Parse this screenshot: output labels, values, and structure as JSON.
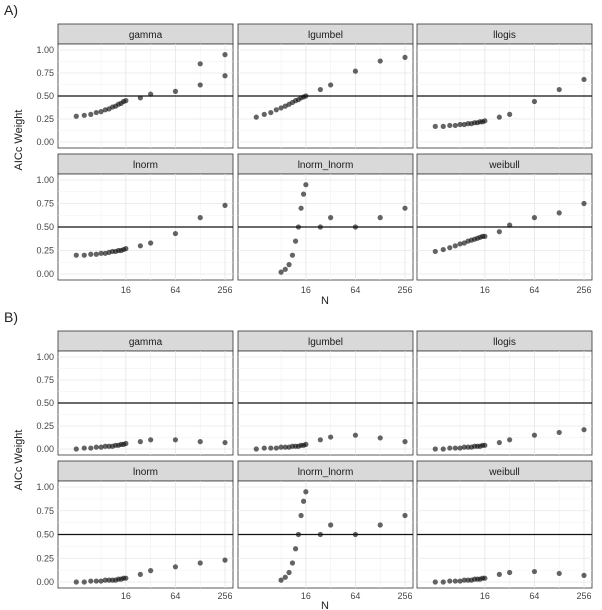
{
  "figure": {
    "axis_label_y": "AICc Weight",
    "axis_label_x": "N"
  },
  "chart_data": [
    {
      "type": "scatter",
      "panel_label": "A)",
      "ylabel": "AICc Weight",
      "xlabel": "N",
      "x_scale": "log2",
      "x_range": [
        3,
        256
      ],
      "y_range": [
        0,
        1
      ],
      "x_ticks": [
        "16",
        "64",
        "256"
      ],
      "y_ticks": [
        "0.00",
        "0.25",
        "0.50",
        "0.75",
        "1.00"
      ],
      "reference_line_y": 0.5,
      "grid": true,
      "facets": [
        {
          "name": "gamma",
          "points": [
            [
              4,
              0.28
            ],
            [
              5,
              0.29
            ],
            [
              6,
              0.3
            ],
            [
              7,
              0.32
            ],
            [
              8,
              0.33
            ],
            [
              9,
              0.35
            ],
            [
              10,
              0.36
            ],
            [
              11,
              0.38
            ],
            [
              12,
              0.39
            ],
            [
              13,
              0.41
            ],
            [
              14,
              0.42
            ],
            [
              15,
              0.44
            ],
            [
              16,
              0.45
            ],
            [
              24,
              0.48
            ],
            [
              32,
              0.52
            ],
            [
              64,
              0.55
            ],
            [
              128,
              0.62
            ],
            [
              256,
              0.72
            ],
            [
              256,
              0.95
            ],
            [
              128,
              0.85
            ]
          ]
        },
        {
          "name": "lgumbel",
          "points": [
            [
              4,
              0.27
            ],
            [
              5,
              0.3
            ],
            [
              6,
              0.32
            ],
            [
              7,
              0.35
            ],
            [
              8,
              0.37
            ],
            [
              9,
              0.39
            ],
            [
              10,
              0.41
            ],
            [
              11,
              0.43
            ],
            [
              12,
              0.45
            ],
            [
              13,
              0.46
            ],
            [
              14,
              0.48
            ],
            [
              15,
              0.49
            ],
            [
              16,
              0.5
            ],
            [
              24,
              0.57
            ],
            [
              32,
              0.62
            ],
            [
              64,
              0.77
            ],
            [
              128,
              0.88
            ],
            [
              256,
              0.92
            ]
          ]
        },
        {
          "name": "llogis",
          "points": [
            [
              4,
              0.17
            ],
            [
              5,
              0.17
            ],
            [
              6,
              0.18
            ],
            [
              7,
              0.18
            ],
            [
              8,
              0.19
            ],
            [
              9,
              0.19
            ],
            [
              10,
              0.2
            ],
            [
              11,
              0.2
            ],
            [
              12,
              0.21
            ],
            [
              13,
              0.21
            ],
            [
              14,
              0.22
            ],
            [
              15,
              0.22
            ],
            [
              16,
              0.23
            ],
            [
              24,
              0.27
            ],
            [
              32,
              0.3
            ],
            [
              64,
              0.44
            ],
            [
              128,
              0.57
            ],
            [
              256,
              0.68
            ]
          ]
        },
        {
          "name": "lnorm",
          "points": [
            [
              4,
              0.2
            ],
            [
              5,
              0.2
            ],
            [
              6,
              0.21
            ],
            [
              7,
              0.21
            ],
            [
              8,
              0.22
            ],
            [
              9,
              0.22
            ],
            [
              10,
              0.23
            ],
            [
              11,
              0.24
            ],
            [
              12,
              0.24
            ],
            [
              13,
              0.25
            ],
            [
              14,
              0.25
            ],
            [
              15,
              0.26
            ],
            [
              16,
              0.27
            ],
            [
              24,
              0.3
            ],
            [
              32,
              0.33
            ],
            [
              64,
              0.43
            ],
            [
              128,
              0.6
            ],
            [
              256,
              0.73
            ]
          ]
        },
        {
          "name": "lnorm_lnorm",
          "points": [
            [
              8,
              0.02
            ],
            [
              9,
              0.05
            ],
            [
              10,
              0.1
            ],
            [
              11,
              0.2
            ],
            [
              12,
              0.35
            ],
            [
              13,
              0.5
            ],
            [
              14,
              0.7
            ],
            [
              15,
              0.85
            ],
            [
              16,
              0.95
            ],
            [
              24,
              0.5
            ],
            [
              32,
              0.6
            ],
            [
              64,
              0.5
            ],
            [
              128,
              0.6
            ],
            [
              256,
              0.7
            ]
          ]
        },
        {
          "name": "weibull",
          "points": [
            [
              4,
              0.24
            ],
            [
              5,
              0.26
            ],
            [
              6,
              0.28
            ],
            [
              7,
              0.3
            ],
            [
              8,
              0.32
            ],
            [
              9,
              0.33
            ],
            [
              10,
              0.35
            ],
            [
              11,
              0.36
            ],
            [
              12,
              0.37
            ],
            [
              13,
              0.38
            ],
            [
              14,
              0.39
            ],
            [
              15,
              0.4
            ],
            [
              16,
              0.4
            ],
            [
              24,
              0.45
            ],
            [
              32,
              0.52
            ],
            [
              64,
              0.6
            ],
            [
              128,
              0.65
            ],
            [
              256,
              0.75
            ]
          ]
        }
      ]
    },
    {
      "type": "scatter",
      "panel_label": "B)",
      "ylabel": "AICc Weight",
      "xlabel": "N",
      "x_scale": "log2",
      "x_range": [
        3,
        256
      ],
      "y_range": [
        0,
        1
      ],
      "x_ticks": [
        "16",
        "64",
        "256"
      ],
      "y_ticks": [
        "0.00",
        "0.25",
        "0.50",
        "0.75",
        "1.00"
      ],
      "reference_line_y": 0.5,
      "grid": true,
      "facets": [
        {
          "name": "gamma",
          "points": [
            [
              4,
              0.0
            ],
            [
              5,
              0.01
            ],
            [
              6,
              0.01
            ],
            [
              7,
              0.02
            ],
            [
              8,
              0.02
            ],
            [
              9,
              0.03
            ],
            [
              10,
              0.03
            ],
            [
              11,
              0.03
            ],
            [
              12,
              0.04
            ],
            [
              13,
              0.04
            ],
            [
              14,
              0.05
            ],
            [
              15,
              0.05
            ],
            [
              16,
              0.06
            ],
            [
              24,
              0.08
            ],
            [
              32,
              0.1
            ],
            [
              64,
              0.1
            ],
            [
              128,
              0.08
            ],
            [
              256,
              0.07
            ]
          ]
        },
        {
          "name": "lgumbel",
          "points": [
            [
              4,
              0.0
            ],
            [
              5,
              0.01
            ],
            [
              6,
              0.01
            ],
            [
              7,
              0.01
            ],
            [
              8,
              0.02
            ],
            [
              9,
              0.02
            ],
            [
              10,
              0.02
            ],
            [
              11,
              0.03
            ],
            [
              12,
              0.03
            ],
            [
              13,
              0.03
            ],
            [
              14,
              0.04
            ],
            [
              15,
              0.04
            ],
            [
              16,
              0.05
            ],
            [
              24,
              0.1
            ],
            [
              32,
              0.13
            ],
            [
              64,
              0.15
            ],
            [
              128,
              0.12
            ],
            [
              256,
              0.08
            ]
          ]
        },
        {
          "name": "llogis",
          "points": [
            [
              4,
              0.0
            ],
            [
              5,
              0.0
            ],
            [
              6,
              0.01
            ],
            [
              7,
              0.01
            ],
            [
              8,
              0.01
            ],
            [
              9,
              0.02
            ],
            [
              10,
              0.02
            ],
            [
              11,
              0.02
            ],
            [
              12,
              0.03
            ],
            [
              13,
              0.03
            ],
            [
              14,
              0.03
            ],
            [
              15,
              0.04
            ],
            [
              16,
              0.04
            ],
            [
              24,
              0.07
            ],
            [
              32,
              0.1
            ],
            [
              64,
              0.15
            ],
            [
              128,
              0.18
            ],
            [
              256,
              0.21
            ]
          ]
        },
        {
          "name": "lnorm",
          "points": [
            [
              4,
              0.0
            ],
            [
              5,
              0.0
            ],
            [
              6,
              0.01
            ],
            [
              7,
              0.01
            ],
            [
              8,
              0.01
            ],
            [
              9,
              0.02
            ],
            [
              10,
              0.02
            ],
            [
              11,
              0.02
            ],
            [
              12,
              0.02
            ],
            [
              13,
              0.03
            ],
            [
              14,
              0.03
            ],
            [
              15,
              0.04
            ],
            [
              16,
              0.04
            ],
            [
              24,
              0.08
            ],
            [
              32,
              0.12
            ],
            [
              64,
              0.16
            ],
            [
              128,
              0.2
            ],
            [
              256,
              0.23
            ]
          ]
        },
        {
          "name": "lnorm_lnorm",
          "points": [
            [
              8,
              0.02
            ],
            [
              9,
              0.05
            ],
            [
              10,
              0.1
            ],
            [
              11,
              0.2
            ],
            [
              12,
              0.35
            ],
            [
              13,
              0.5
            ],
            [
              14,
              0.7
            ],
            [
              15,
              0.85
            ],
            [
              16,
              0.95
            ],
            [
              24,
              0.5
            ],
            [
              32,
              0.6
            ],
            [
              64,
              0.5
            ],
            [
              128,
              0.6
            ],
            [
              256,
              0.7
            ]
          ]
        },
        {
          "name": "weibull",
          "points": [
            [
              4,
              0.0
            ],
            [
              5,
              0.0
            ],
            [
              6,
              0.01
            ],
            [
              7,
              0.01
            ],
            [
              8,
              0.01
            ],
            [
              9,
              0.02
            ],
            [
              10,
              0.02
            ],
            [
              11,
              0.02
            ],
            [
              12,
              0.03
            ],
            [
              13,
              0.03
            ],
            [
              14,
              0.03
            ],
            [
              15,
              0.04
            ],
            [
              16,
              0.04
            ],
            [
              24,
              0.08
            ],
            [
              32,
              0.1
            ],
            [
              64,
              0.11
            ],
            [
              128,
              0.09
            ],
            [
              256,
              0.07
            ]
          ]
        }
      ]
    }
  ]
}
